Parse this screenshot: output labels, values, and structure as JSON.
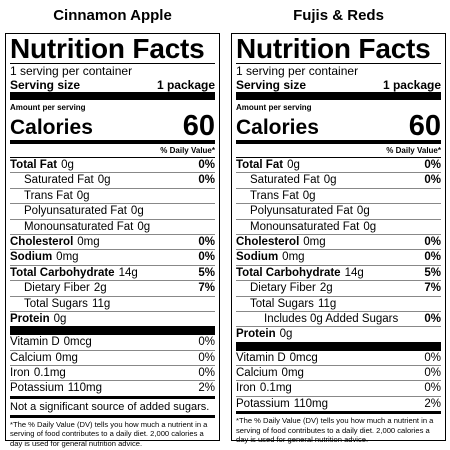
{
  "labels": [
    {
      "product": "Cinnamon Apple",
      "title": "Nutrition Facts",
      "servings": "1 serving per container",
      "serving_size_label": "Serving size",
      "serving_size": "1 package",
      "amount_per_serving": "Amount per serving",
      "calories_label": "Calories",
      "calories": 60,
      "daily_value_header": "% Daily Value*",
      "nutrients": [
        {
          "name": "Total Fat",
          "amount": "0g",
          "dv": "0%",
          "sub": [
            {
              "name": "Saturated Fat",
              "amount": "0g",
              "dv": "0%"
            },
            {
              "name": "Trans Fat",
              "amount": "0g"
            },
            {
              "name": "Polyunsaturated Fat",
              "amount": "0g"
            },
            {
              "name": "Monounsaturated Fat",
              "amount": "0g"
            }
          ]
        },
        {
          "name": "Cholesterol",
          "amount": "0mg",
          "dv": "0%"
        },
        {
          "name": "Sodium",
          "amount": "0mg",
          "dv": "0%"
        },
        {
          "name": "Total Carbohydrate",
          "amount": "14g",
          "dv": "5%",
          "sub": [
            {
              "name": "Dietary Fiber",
              "amount": "2g",
              "dv": "7%"
            },
            {
              "name": "Total Sugars",
              "amount": "11g"
            }
          ]
        },
        {
          "name": "Protein",
          "amount": "0g"
        }
      ],
      "minerals": [
        {
          "name": "Vitamin D",
          "amount": "0mcg",
          "dv": "0%"
        },
        {
          "name": "Calcium",
          "amount": "0mg",
          "dv": "0%"
        },
        {
          "name": "Iron",
          "amount": "0.1mg",
          "dv": "0%"
        },
        {
          "name": "Potassium",
          "amount": "110mg",
          "dv": "2%"
        }
      ],
      "note": "Not a significant source of added sugars.",
      "footnote": "*The % Daily Value (DV) tells you how much a nutrient in a serving of food contributes to a daily diet. 2,000 calories a day is used for general nutrition advice."
    },
    {
      "product": "Fujis & Reds",
      "title": "Nutrition Facts",
      "servings": "1 serving per container",
      "serving_size_label": "Serving size",
      "serving_size": "1 package",
      "amount_per_serving": "Amount per serving",
      "calories_label": "Calories",
      "calories": 60,
      "daily_value_header": "% Daily Value*",
      "nutrients": [
        {
          "name": "Total Fat",
          "amount": "0g",
          "dv": "0%",
          "sub": [
            {
              "name": "Saturated Fat",
              "amount": "0g",
              "dv": "0%"
            },
            {
              "name": "Trans Fat",
              "amount": "0g"
            },
            {
              "name": "Polyunsaturated Fat",
              "amount": "0g"
            },
            {
              "name": "Monounsaturated Fat",
              "amount": "0g"
            }
          ]
        },
        {
          "name": "Cholesterol",
          "amount": "0mg",
          "dv": "0%"
        },
        {
          "name": "Sodium",
          "amount": "0mg",
          "dv": "0%"
        },
        {
          "name": "Total Carbohydrate",
          "amount": "14g",
          "dv": "5%",
          "sub": [
            {
              "name": "Dietary Fiber",
              "amount": "2g",
              "dv": "7%"
            },
            {
              "name": "Total Sugars",
              "amount": "11g",
              "sub": [
                {
                  "name": "Includes 0g Added Sugars",
                  "dv": "0%"
                }
              ]
            }
          ]
        },
        {
          "name": "Protein",
          "amount": "0g"
        }
      ],
      "minerals": [
        {
          "name": "Vitamin D",
          "amount": "0mcg",
          "dv": "0%"
        },
        {
          "name": "Calcium",
          "amount": "0mg",
          "dv": "0%"
        },
        {
          "name": "Iron",
          "amount": "0.1mg",
          "dv": "0%"
        },
        {
          "name": "Potassium",
          "amount": "110mg",
          "dv": "2%"
        }
      ],
      "footnote": "*The % Daily Value (DV) tells you how much a nutrient in a serving of food contributes to a daily diet. 2,000 calories a day is used for general nutrition advice."
    }
  ]
}
